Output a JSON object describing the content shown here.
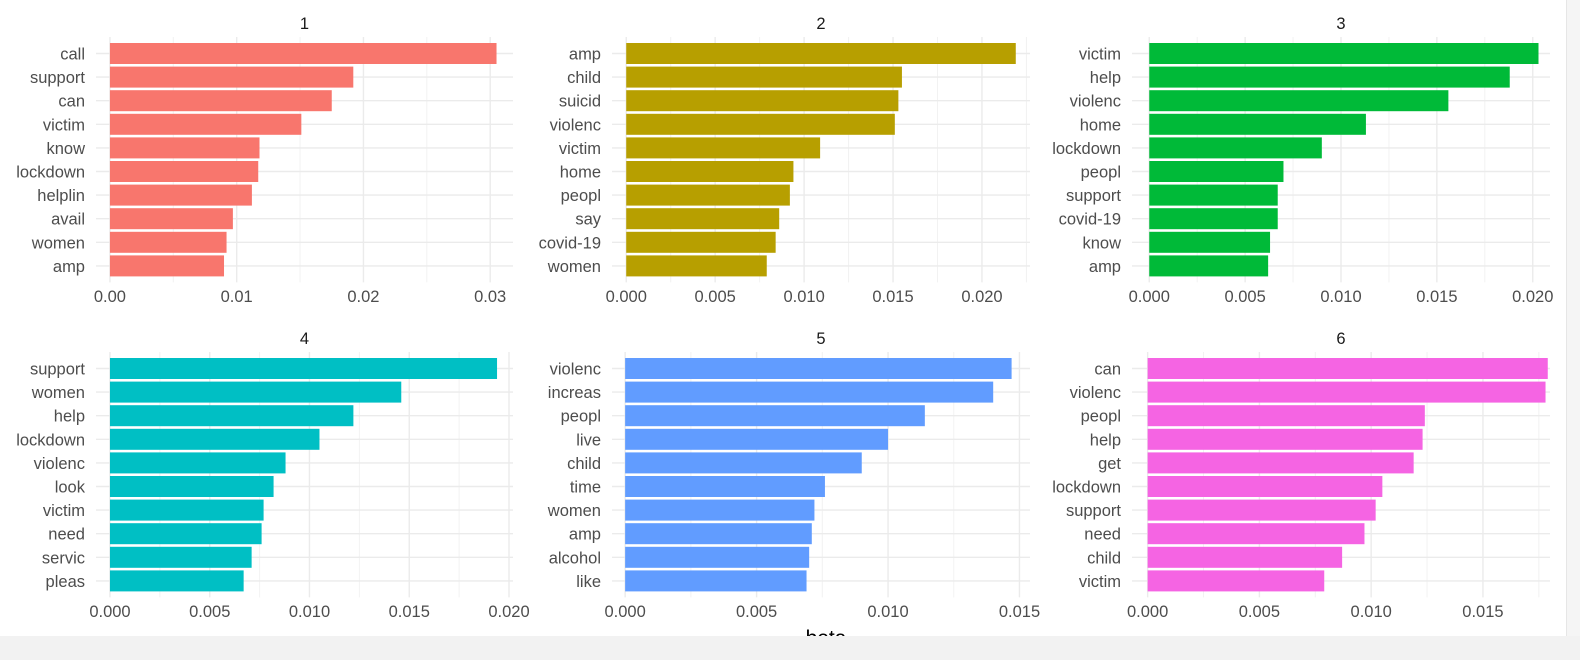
{
  "xlabel": "beta",
  "colors": [
    "#F8766D",
    "#B79F00",
    "#00BA38",
    "#00BFC4",
    "#619CFF",
    "#F564E3"
  ],
  "chart_data": [
    {
      "type": "bar",
      "title": "1",
      "categories": [
        "call",
        "support",
        "can",
        "victim",
        "know",
        "lockdown",
        "helplin",
        "avail",
        "women",
        "amp"
      ],
      "values": [
        0.0305,
        0.0192,
        0.0175,
        0.0151,
        0.0118,
        0.0117,
        0.0112,
        0.0097,
        0.0092,
        0.009
      ],
      "xlim": [
        -0.0011,
        0.0318
      ],
      "ticks": [
        0.0,
        0.01,
        0.02,
        0.03
      ],
      "tick_labels": [
        "0.00",
        "0.01",
        "0.02",
        "0.03"
      ]
    },
    {
      "type": "bar",
      "title": "2",
      "categories": [
        "amp",
        "child",
        "suicid",
        "violenc",
        "victim",
        "home",
        "peopl",
        "say",
        "covid-19",
        "women"
      ],
      "values": [
        0.0219,
        0.0155,
        0.0153,
        0.0151,
        0.0109,
        0.0094,
        0.0092,
        0.0086,
        0.0084,
        0.0079
      ],
      "xlim": [
        -0.0008,
        0.0227
      ],
      "ticks": [
        0.0,
        0.005,
        0.01,
        0.015,
        0.02
      ],
      "tick_labels": [
        "0.000",
        "0.005",
        "0.010",
        "0.015",
        "0.020"
      ]
    },
    {
      "type": "bar",
      "title": "3",
      "categories": [
        "victim",
        "help",
        "violenc",
        "home",
        "lockdown",
        "peopl",
        "support",
        "covid-19",
        "know",
        "amp"
      ],
      "values": [
        0.0203,
        0.0188,
        0.0156,
        0.0113,
        0.009,
        0.007,
        0.0067,
        0.0067,
        0.0063,
        0.0062
      ],
      "xlim": [
        -0.0009,
        0.0209
      ],
      "ticks": [
        0.0,
        0.005,
        0.01,
        0.015,
        0.02
      ],
      "tick_labels": [
        "0.000",
        "0.005",
        "0.010",
        "0.015",
        "0.020"
      ]
    },
    {
      "type": "bar",
      "title": "4",
      "categories": [
        "support",
        "women",
        "help",
        "lockdown",
        "violenc",
        "look",
        "victim",
        "need",
        "servic",
        "pleas"
      ],
      "values": [
        0.0194,
        0.0146,
        0.0122,
        0.0105,
        0.0088,
        0.0082,
        0.0077,
        0.0076,
        0.0071,
        0.0067
      ],
      "xlim": [
        -0.0007,
        0.0202
      ],
      "ticks": [
        0.0,
        0.005,
        0.01,
        0.015,
        0.02
      ],
      "tick_labels": [
        "0.000",
        "0.005",
        "0.010",
        "0.015",
        "0.020"
      ]
    },
    {
      "type": "bar",
      "title": "5",
      "categories": [
        "violenc",
        "increas",
        "peopl",
        "live",
        "child",
        "time",
        "women",
        "amp",
        "alcohol",
        "like"
      ],
      "values": [
        0.0147,
        0.014,
        0.0114,
        0.01,
        0.009,
        0.0076,
        0.0072,
        0.0071,
        0.007,
        0.0069
      ],
      "xlim": [
        -0.0005,
        0.0154
      ],
      "ticks": [
        0.0,
        0.005,
        0.01,
        0.015
      ],
      "tick_labels": [
        "0.000",
        "0.005",
        "0.010",
        "0.015"
      ]
    },
    {
      "type": "bar",
      "title": "6",
      "categories": [
        "can",
        "violenc",
        "peopl",
        "help",
        "get",
        "lockdown",
        "support",
        "need",
        "child",
        "victim"
      ],
      "values": [
        0.0179,
        0.0178,
        0.0124,
        0.0123,
        0.0119,
        0.0105,
        0.0102,
        0.0097,
        0.0087,
        0.0079
      ],
      "xlim": [
        -0.0007,
        0.018
      ],
      "ticks": [
        0.0,
        0.005,
        0.01,
        0.015
      ],
      "tick_labels": [
        "0.000",
        "0.005",
        "0.010",
        "0.015"
      ]
    }
  ]
}
